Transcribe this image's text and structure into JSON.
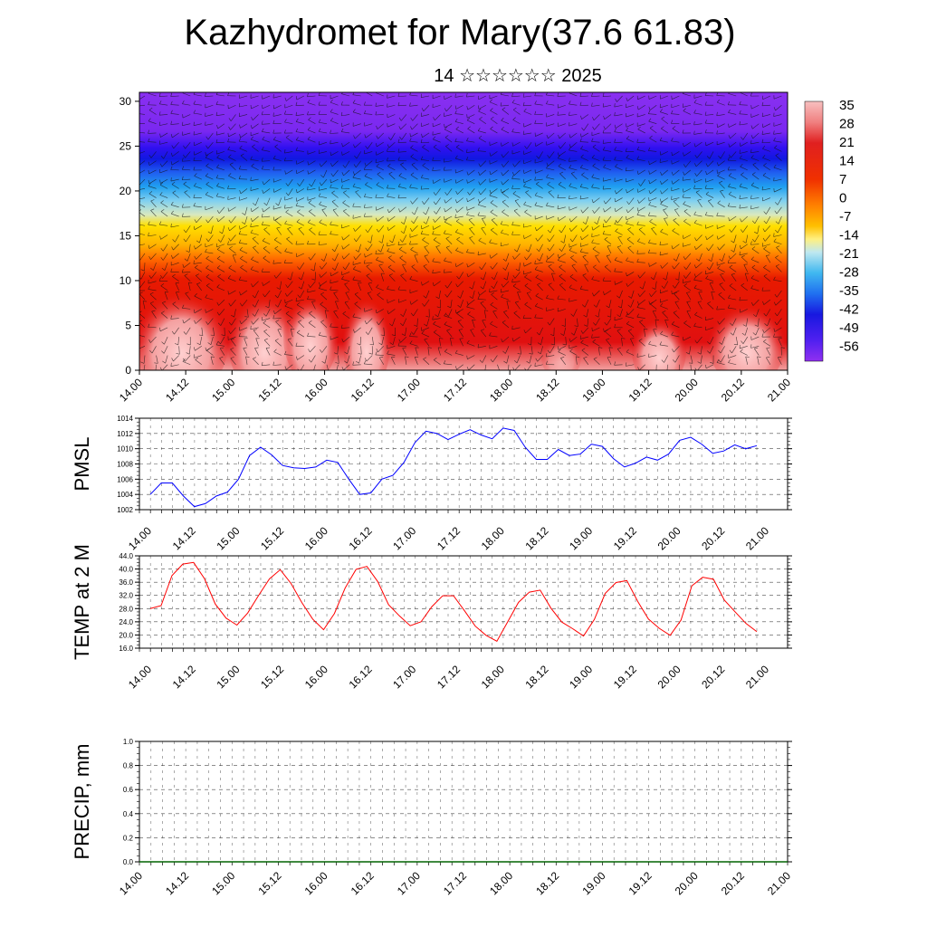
{
  "title": "Kazhydromet for Mary(37.6 61.83)",
  "subtitle": "14 ☆☆☆☆☆☆ 2025",
  "colors": {
    "pmsl_line": "#0000ff",
    "temp_line": "#ff0000",
    "precip_line": "#006400"
  },
  "chart_data": [
    {
      "type": "heatmap",
      "panel": "vertical-cross-section",
      "title": "",
      "y_ticks": [
        "0",
        "5",
        "10",
        "15",
        "20",
        "25",
        "30"
      ],
      "ylim": [
        0,
        31
      ],
      "x_ticks": [
        "14.00",
        "14.12",
        "15.00",
        "15.12",
        "16.00",
        "16.12",
        "17.00",
        "17.12",
        "18.00",
        "18.12",
        "19.00",
        "19.12",
        "20.00",
        "20.12",
        "21.00"
      ],
      "colorbar_labels": [
        "35",
        "28",
        "21",
        "14",
        "7",
        "0",
        "-7",
        "-14",
        "-21",
        "-28",
        "-35",
        "-42",
        "-49",
        "-56"
      ],
      "overlay": "wind-barbs"
    },
    {
      "type": "line",
      "ylabel": "PMSL",
      "ylim": [
        1002,
        1014
      ],
      "y_ticks": [
        "1002",
        "1004",
        "1006",
        "1008",
        "1010",
        "1012",
        "1014"
      ],
      "x_ticks": [
        "14.00",
        "14.12",
        "15.00",
        "15.12",
        "16.00",
        "16.12",
        "17.00",
        "17.12",
        "18.00",
        "18.12",
        "19.00",
        "19.12",
        "20.00",
        "20.12",
        "21.00"
      ],
      "values": [
        1004.0,
        1005.5,
        1005.5,
        1003.8,
        1002.4,
        1002.8,
        1003.8,
        1004.3,
        1006.0,
        1009.1,
        1010.2,
        1009.2,
        1007.8,
        1007.5,
        1007.4,
        1007.6,
        1008.5,
        1008.2,
        1006.0,
        1004.0,
        1004.2,
        1006.0,
        1006.5,
        1008.2,
        1010.8,
        1012.3,
        1012.0,
        1011.2,
        1011.9,
        1012.5,
        1011.8,
        1011.3,
        1012.7,
        1012.4,
        1010.2,
        1008.6,
        1008.6,
        1009.9,
        1009.1,
        1009.3,
        1010.6,
        1010.3,
        1008.7,
        1007.6,
        1008.1,
        1008.9,
        1008.5,
        1009.3,
        1011.1,
        1011.5,
        1010.6,
        1009.4,
        1009.7,
        1010.5,
        1010.0,
        1010.4
      ]
    },
    {
      "type": "line",
      "ylabel": "TEMP at 2 M",
      "ylim": [
        16,
        44
      ],
      "y_ticks": [
        "16.0",
        "20.0",
        "24.0",
        "28.0",
        "32.0",
        "36.0",
        "40.0",
        "44.0"
      ],
      "x_ticks": [
        "14.00",
        "14.12",
        "15.00",
        "15.12",
        "16.00",
        "16.12",
        "17.00",
        "17.12",
        "18.00",
        "18.12",
        "19.00",
        "19.12",
        "20.00",
        "20.12",
        "21.00"
      ],
      "values": [
        28.0,
        28.9,
        38.0,
        41.5,
        42.0,
        37.1,
        29.4,
        25.1,
        23.0,
        26.7,
        32.0,
        37.0,
        39.8,
        35.6,
        29.8,
        24.8,
        21.6,
        26.5,
        34.3,
        39.9,
        40.8,
        36.2,
        29.2,
        25.8,
        22.8,
        24.0,
        28.6,
        31.9,
        31.9,
        27.4,
        22.7,
        19.9,
        18.1,
        24.0,
        29.9,
        33.0,
        33.6,
        28.1,
        23.9,
        21.9,
        19.7,
        24.7,
        32.6,
        35.9,
        36.5,
        30.2,
        24.8,
        22.0,
        19.9,
        24.5,
        34.9,
        37.5,
        36.9,
        30.6,
        27.0,
        23.5,
        21.0
      ]
    },
    {
      "type": "line",
      "ylabel": "PRECIP, mm",
      "ylim": [
        0,
        1
      ],
      "y_ticks": [
        "0.0",
        "0.2",
        "0.4",
        "0.6",
        "0.8",
        "1.0"
      ],
      "x_ticks": [
        "14.00",
        "14.12",
        "15.00",
        "15.12",
        "16.00",
        "16.12",
        "17.00",
        "17.12",
        "18.00",
        "18.12",
        "19.00",
        "19.12",
        "20.00",
        "20.12",
        "21.00"
      ],
      "values": [
        0,
        0,
        0,
        0,
        0,
        0,
        0,
        0,
        0,
        0,
        0,
        0,
        0,
        0,
        0,
        0,
        0,
        0,
        0,
        0,
        0,
        0,
        0,
        0,
        0,
        0,
        0,
        0,
        0,
        0,
        0,
        0,
        0,
        0,
        0,
        0,
        0,
        0,
        0,
        0,
        0,
        0,
        0,
        0,
        0,
        0,
        0,
        0,
        0,
        0,
        0,
        0,
        0,
        0,
        0,
        0,
        0
      ]
    }
  ]
}
